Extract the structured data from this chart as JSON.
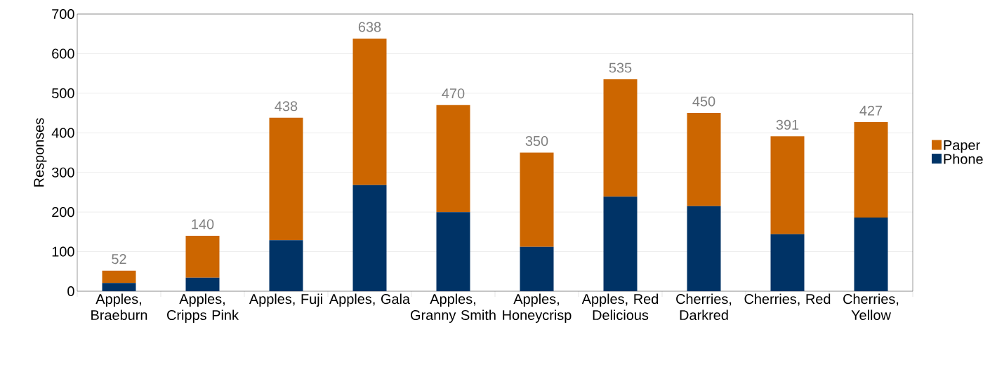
{
  "chart_data": {
    "type": "bar",
    "stacked": true,
    "ylabel": "Responses",
    "categories": [
      "Apples, Braeburn",
      "Apples, Cripps Pink",
      "Apples, Fuji",
      "Apples, Gala",
      "Apples, Granny Smith",
      "Apples, Honeycrisp",
      "Apples, Red Delicious",
      "Cherries, Darkred",
      "Cherries, Red",
      "Cherries, Yellow"
    ],
    "series": [
      {
        "name": "Phone",
        "color": "#003366",
        "values": [
          21,
          34,
          129,
          268,
          200,
          112,
          239,
          215,
          144,
          186
        ]
      },
      {
        "name": "Paper",
        "color": "#cc6600",
        "values": [
          31,
          106,
          309,
          370,
          270,
          238,
          296,
          235,
          247,
          241
        ]
      }
    ],
    "totals": [
      "52",
      "140",
      "438",
      "638",
      "470",
      "350",
      "535",
      "450",
      "391",
      "427"
    ],
    "ylim": [
      0,
      700
    ],
    "yticks": [
      0,
      100,
      200,
      300,
      400,
      500,
      600,
      700
    ],
    "grid": "y",
    "legend": "right"
  }
}
